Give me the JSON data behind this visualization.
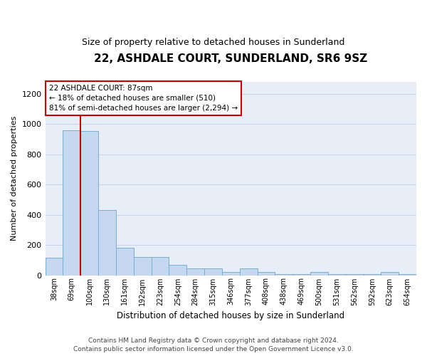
{
  "title": "22, ASHDALE COURT, SUNDERLAND, SR6 9SZ",
  "subtitle": "Size of property relative to detached houses in Sunderland",
  "xlabel": "Distribution of detached houses by size in Sunderland",
  "ylabel": "Number of detached properties",
  "categories": [
    "38sqm",
    "69sqm",
    "100sqm",
    "130sqm",
    "161sqm",
    "192sqm",
    "223sqm",
    "254sqm",
    "284sqm",
    "315sqm",
    "346sqm",
    "377sqm",
    "408sqm",
    "438sqm",
    "469sqm",
    "500sqm",
    "531sqm",
    "562sqm",
    "592sqm",
    "623sqm",
    "654sqm"
  ],
  "values": [
    115,
    960,
    955,
    430,
    180,
    120,
    120,
    70,
    45,
    45,
    20,
    45,
    20,
    5,
    5,
    20,
    5,
    5,
    5,
    20,
    5
  ],
  "bar_color": "#c5d8ef",
  "bar_edge_color": "#7badd4",
  "grid_color": "#c8d4e8",
  "background_color": "#e8eef8",
  "annotation_text": "22 ASHDALE COURT: 87sqm\n← 18% of detached houses are smaller (510)\n81% of semi-detached houses are larger (2,294) →",
  "annotation_box_color": "#ffffff",
  "annotation_border_color": "#cc0000",
  "ylim": [
    0,
    1280
  ],
  "yticks": [
    0,
    200,
    400,
    600,
    800,
    1000,
    1200
  ],
  "footer": "Contains HM Land Registry data © Crown copyright and database right 2024.\nContains public sector information licensed under the Open Government Licence v3.0."
}
